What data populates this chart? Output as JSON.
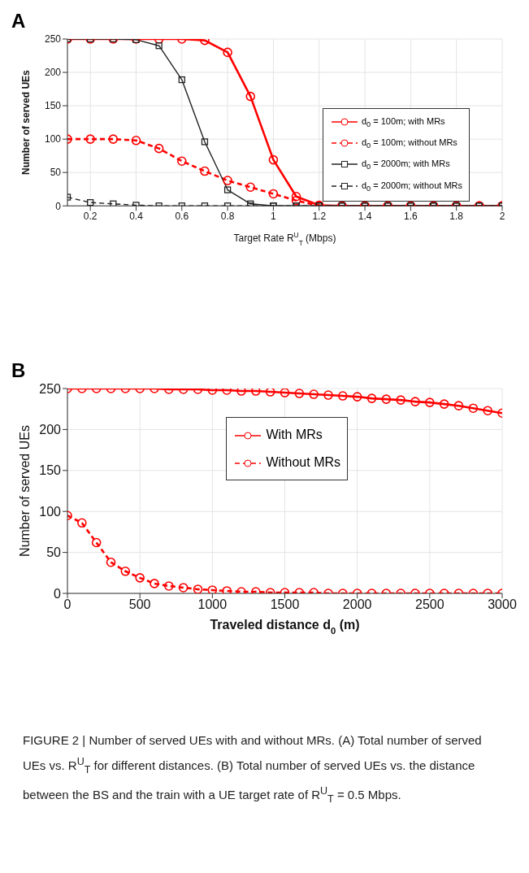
{
  "chart_data": [
    {
      "type": "line",
      "title": "A",
      "xlabel": "Target Rate R$^{U}$$_{T}$ (Mbps)",
      "ylabel": "Number of served UEs",
      "x": [
        0.1,
        0.2,
        0.3,
        0.4,
        0.5,
        0.6,
        0.7,
        0.8,
        0.9,
        1,
        1.1,
        1.2,
        1.3,
        1.4,
        1.5,
        1.6,
        1.7,
        1.8,
        1.9,
        2
      ],
      "xlim": [
        0.1,
        2
      ],
      "xticks": [
        0.2,
        0.4,
        0.6,
        0.8,
        1,
        1.2,
        1.4,
        1.6,
        1.8,
        2
      ],
      "ylim": [
        0,
        250
      ],
      "yticks": [
        0,
        50,
        100,
        150,
        200,
        250
      ],
      "grid": true,
      "legend": "right",
      "series": [
        {
          "name": "d$_{0}$ = 100m; with MRs",
          "color": "#ff0000",
          "marker": "circle",
          "line_style": "solid",
          "values": [
            250,
            250,
            250,
            250,
            250,
            250,
            248,
            230,
            164,
            69,
            14,
            1,
            0,
            0,
            0,
            0,
            0,
            0,
            0,
            0
          ]
        },
        {
          "name": "d$_{0}$ = 100m; without MRs",
          "color": "#ff0000",
          "marker": "circle",
          "line_style": "dashed",
          "values": [
            100,
            100,
            100,
            98,
            86,
            67,
            52,
            38,
            28,
            18,
            8,
            0,
            0,
            0,
            0,
            0,
            0,
            0,
            0,
            0
          ]
        },
        {
          "name": "d$_{0}$ = 2000m; with MRs",
          "color": "#222222",
          "marker": "square",
          "line_style": "solid",
          "values": [
            250,
            250,
            250,
            249,
            240,
            189,
            96,
            24,
            3,
            0,
            0,
            0,
            0,
            0,
            0,
            0,
            0,
            0,
            0,
            0
          ]
        },
        {
          "name": "d$_{0}$ = 2000m; without MRs",
          "color": "#222222",
          "marker": "square",
          "line_style": "dashed",
          "values": [
            13,
            5,
            3,
            1,
            0,
            0,
            0,
            0,
            0,
            0,
            0,
            0,
            0,
            0,
            0,
            0,
            0,
            0,
            0,
            0
          ]
        }
      ]
    },
    {
      "type": "line",
      "title": "B",
      "xlabel": "Traveled distance d$_{0}$ (m)",
      "ylabel": "Number of served UEs",
      "x": [
        0,
        100,
        200,
        300,
        400,
        500,
        600,
        700,
        800,
        900,
        1000,
        1100,
        1200,
        1300,
        1400,
        1500,
        1600,
        1700,
        1800,
        1900,
        2000,
        2100,
        2200,
        2300,
        2400,
        2500,
        2600,
        2700,
        2800,
        2900,
        3000
      ],
      "xlim": [
        0,
        3000
      ],
      "xticks": [
        0,
        500,
        1000,
        1500,
        2000,
        2500,
        3000
      ],
      "ylim": [
        0,
        250
      ],
      "yticks": [
        0,
        50,
        100,
        150,
        200,
        250
      ],
      "grid": true,
      "legend": "top",
      "annotations": [
        "FIGURE 2 | Number of served UEs with and without MRs. (A) Total number of served UEs vs. R$^{U}$$_{T}$ for different distances. (B) Total number of served UEs vs. the distance between the BS and the train with a UE target rate of R$^{U}$$_{T}$ = 0.5 Mbps."
      ],
      "series": [
        {
          "name": "With MRs",
          "color": "#ff0000",
          "marker": "circle",
          "line_style": "solid",
          "values": [
            250,
            250,
            250,
            250,
            250,
            250,
            250,
            249,
            249,
            249,
            248,
            248,
            247,
            247,
            246,
            245,
            244,
            243,
            242,
            241,
            240,
            238,
            237,
            236,
            234,
            233,
            231,
            229,
            226,
            223,
            220
          ]
        },
        {
          "name": "Without MRs",
          "color": "#ff0000",
          "marker": "circle",
          "line_style": "dashed",
          "values": [
            95,
            86,
            62,
            38,
            27,
            19,
            12,
            9,
            7,
            5,
            4,
            3,
            2,
            2,
            1,
            1,
            1,
            1,
            0,
            0,
            0,
            0,
            0,
            0,
            0,
            0,
            0,
            0,
            0,
            0,
            0
          ]
        }
      ]
    }
  ]
}
